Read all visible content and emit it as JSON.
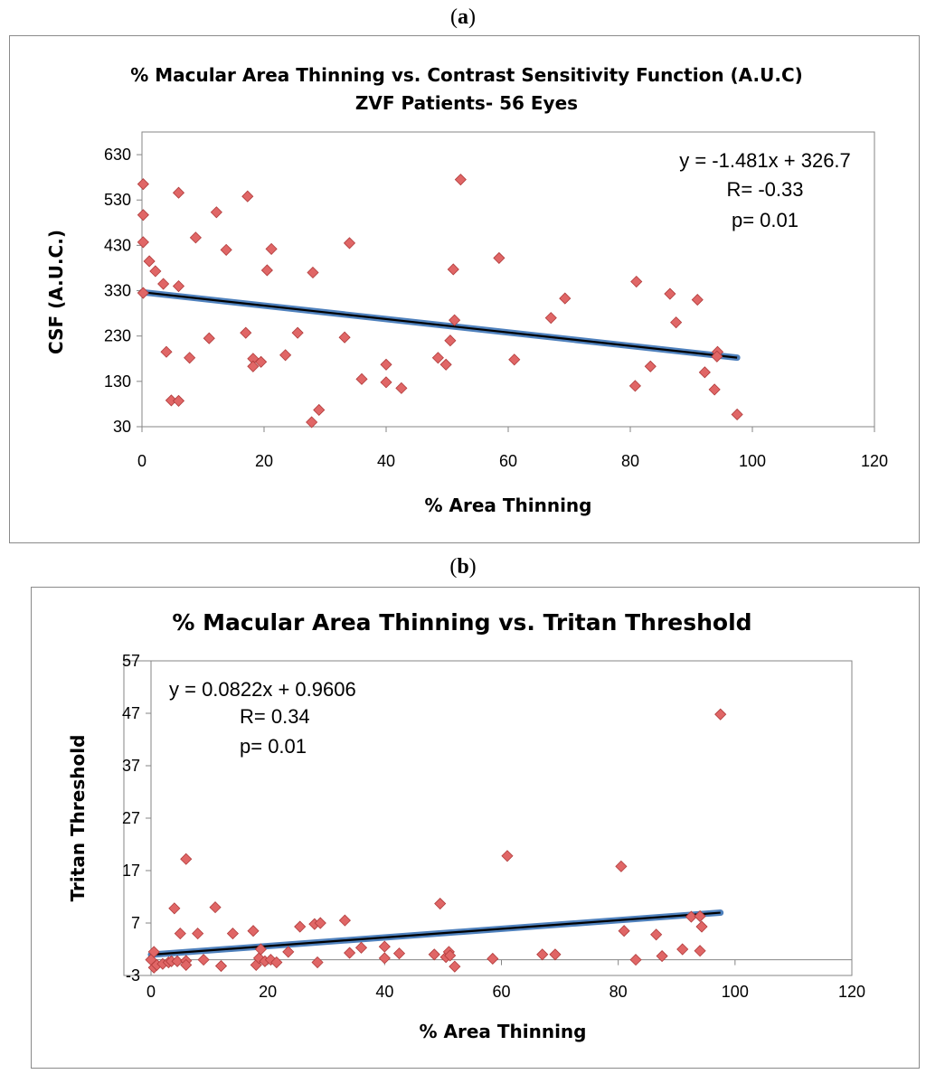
{
  "labels": {
    "a": "a",
    "b": "b"
  },
  "chart_data": [
    {
      "type": "scatter",
      "panel": "a",
      "title": "% Macular Area Thinning vs. Contrast Sensitivity Function (A.U.C)",
      "subtitle": "ZVF Patients- 56 Eyes",
      "xlabel": "% Area Thinning",
      "ylabel": "CSF (A.U.C.)",
      "xlim": [
        0,
        120
      ],
      "ylim": [
        30,
        680
      ],
      "xticks": [
        "0",
        "20",
        "40",
        "60",
        "80",
        "100",
        "120"
      ],
      "yticks": [
        "30",
        "130",
        "230",
        "330",
        "430",
        "530",
        "630"
      ],
      "x_tick_values": [
        0,
        20,
        40,
        60,
        80,
        100,
        120
      ],
      "y_tick_values": [
        30,
        130,
        230,
        330,
        430,
        530,
        630
      ],
      "annotations": [
        "y = -1.481x + 326.7",
        "R= -0.33",
        "p= 0.01"
      ],
      "trendline": {
        "slope": -1.481,
        "intercept": 326.7,
        "x_range": [
          0,
          97.5
        ]
      },
      "points": [
        [
          0.2,
          565
        ],
        [
          0.2,
          497
        ],
        [
          0.2,
          437
        ],
        [
          0.2,
          325
        ],
        [
          1.2,
          395
        ],
        [
          2.2,
          373
        ],
        [
          3.5,
          345
        ],
        [
          4,
          195
        ],
        [
          4.8,
          88
        ],
        [
          6,
          546
        ],
        [
          6,
          340
        ],
        [
          6,
          87
        ],
        [
          7.8,
          182
        ],
        [
          8.8,
          447
        ],
        [
          11,
          225
        ],
        [
          12.2,
          503
        ],
        [
          13.8,
          420
        ],
        [
          17.3,
          538
        ],
        [
          17,
          237
        ],
        [
          18.2,
          180
        ],
        [
          18.2,
          163
        ],
        [
          19.5,
          173
        ],
        [
          20.5,
          375
        ],
        [
          21.2,
          422
        ],
        [
          23.5,
          188
        ],
        [
          25.5,
          237
        ],
        [
          28,
          370
        ],
        [
          27.8,
          40
        ],
        [
          29,
          67
        ],
        [
          33.2,
          227
        ],
        [
          34,
          435
        ],
        [
          36,
          135
        ],
        [
          40,
          167
        ],
        [
          40,
          128
        ],
        [
          42.5,
          115
        ],
        [
          48.5,
          182
        ],
        [
          49.8,
          167
        ],
        [
          50.5,
          220
        ],
        [
          51,
          377
        ],
        [
          51.2,
          265
        ],
        [
          52.2,
          575
        ],
        [
          58.5,
          402
        ],
        [
          61,
          178
        ],
        [
          67,
          270
        ],
        [
          69.3,
          313
        ],
        [
          80.8,
          120
        ],
        [
          81,
          350
        ],
        [
          83.3,
          163
        ],
        [
          86.5,
          323
        ],
        [
          87.5,
          260
        ],
        [
          91,
          310
        ],
        [
          92.2,
          150
        ],
        [
          93.8,
          112
        ],
        [
          94.3,
          195
        ],
        [
          94.2,
          185
        ],
        [
          97.5,
          57
        ]
      ]
    },
    {
      "type": "scatter",
      "panel": "b",
      "title": "% Macular Area Thinning vs. Tritan Threshold",
      "xlabel": "% Area Thinning",
      "ylabel": "Tritan Threshold",
      "xlim": [
        0,
        120
      ],
      "ylim": [
        -3,
        57
      ],
      "xticks": [
        "0",
        "20",
        "40",
        "60",
        "80",
        "100",
        "120"
      ],
      "yticks": [
        "-3",
        "7",
        "17",
        "27",
        "37",
        "47",
        "57"
      ],
      "x_tick_values": [
        0,
        20,
        40,
        60,
        80,
        100,
        120
      ],
      "y_tick_values": [
        -3,
        7,
        17,
        27,
        37,
        47,
        57
      ],
      "annotations": [
        "y = 0.0822x + 0.9606",
        "R= 0.34",
        "p= 0.01"
      ],
      "trendline": {
        "slope": 0.0822,
        "intercept": 0.9606,
        "x_range": [
          0,
          97.5
        ]
      },
      "points": [
        [
          0,
          0
        ],
        [
          0.5,
          -1.5
        ],
        [
          0.5,
          1.5
        ],
        [
          1,
          -1
        ],
        [
          2,
          -0.8
        ],
        [
          3,
          -0.5
        ],
        [
          3.5,
          -0.3
        ],
        [
          4.5,
          -0.3
        ],
        [
          4,
          9.8
        ],
        [
          5,
          5
        ],
        [
          6,
          19.2
        ],
        [
          6,
          -0.2
        ],
        [
          6,
          -1
        ],
        [
          8,
          5
        ],
        [
          9,
          0
        ],
        [
          11,
          10
        ],
        [
          12,
          -1.2
        ],
        [
          14,
          5
        ],
        [
          17.5,
          5.5
        ],
        [
          18,
          -1
        ],
        [
          18.5,
          0.3
        ],
        [
          18.8,
          2
        ],
        [
          19.5,
          -0.3
        ],
        [
          20.5,
          0
        ],
        [
          21.5,
          -0.5
        ],
        [
          23.5,
          1.5
        ],
        [
          25.5,
          6.3
        ],
        [
          28,
          6.8
        ],
        [
          28.5,
          -0.5
        ],
        [
          29,
          7
        ],
        [
          33.2,
          7.5
        ],
        [
          34,
          1.3
        ],
        [
          36,
          2.3
        ],
        [
          40,
          2.5
        ],
        [
          40,
          0.3
        ],
        [
          42.5,
          1.2
        ],
        [
          48.5,
          1
        ],
        [
          49.5,
          10.7
        ],
        [
          50.5,
          0.5
        ],
        [
          51,
          1.5
        ],
        [
          51.2,
          0.8
        ],
        [
          52,
          -1.3
        ],
        [
          58.5,
          0.2
        ],
        [
          61,
          19.8
        ],
        [
          67,
          1
        ],
        [
          69.2,
          1
        ],
        [
          80.5,
          17.8
        ],
        [
          81,
          5.5
        ],
        [
          83,
          0
        ],
        [
          86.5,
          4.8
        ],
        [
          87.5,
          0.7
        ],
        [
          91,
          2
        ],
        [
          92.5,
          8.2
        ],
        [
          94,
          8.3
        ],
        [
          94,
          1.7
        ],
        [
          94.3,
          6.3
        ],
        [
          97.5,
          46.8
        ]
      ]
    }
  ],
  "colors": {
    "marker_fill": "#e06666",
    "marker_stroke": "#b03b3b",
    "trend_outer": "#4f81bd",
    "trend_inner": "#000000",
    "frame": "#8a8a8a",
    "axis": "#868686"
  }
}
